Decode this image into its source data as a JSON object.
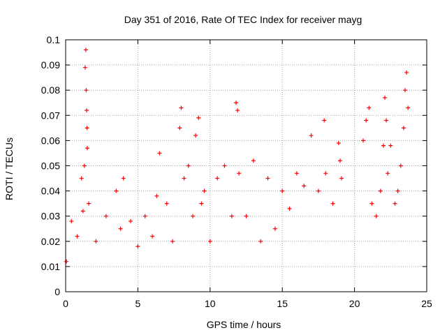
{
  "chart_data": {
    "type": "scatter",
    "title": "Day 351 of 2016, Rate Of TEC Index for receiver mayg",
    "xlabel": "GPS time / hours",
    "ylabel": "ROTI / TECUs",
    "xlim": [
      0,
      25
    ],
    "ylim": [
      0,
      0.1
    ],
    "xticks": [
      "0",
      "5",
      "10",
      "15",
      "20",
      "25"
    ],
    "yticks": [
      "0",
      "0.01",
      "0.02",
      "0.03",
      "0.04",
      "0.05",
      "0.06",
      "0.07",
      "0.08",
      "0.09",
      "0.1"
    ],
    "grid": true,
    "marker": "+",
    "colors": {
      "points": "#ff0000",
      "grid": "#a0a0a0",
      "axis": "#000000"
    },
    "x": [
      0.05,
      0.4,
      0.8,
      1.1,
      1.2,
      1.3,
      1.35,
      1.4,
      1.42,
      1.45,
      1.48,
      1.5,
      1.6,
      2.1,
      2.8,
      3.5,
      3.8,
      4.0,
      4.5,
      5.0,
      5.5,
      6.0,
      6.3,
      6.5,
      7.0,
      7.4,
      7.9,
      8.0,
      8.2,
      8.5,
      8.8,
      9.0,
      9.2,
      9.4,
      9.6,
      10.0,
      10.5,
      11.0,
      11.5,
      11.8,
      11.9,
      12.0,
      12.5,
      13.0,
      13.5,
      14.0,
      14.5,
      15.0,
      15.5,
      16.0,
      16.5,
      17.0,
      17.5,
      17.9,
      18.0,
      18.5,
      18.9,
      19.0,
      19.1,
      20.6,
      20.8,
      21.0,
      21.2,
      21.5,
      21.8,
      22.0,
      22.1,
      22.2,
      22.3,
      22.5,
      22.8,
      23.0,
      23.2,
      23.4,
      23.5,
      23.6,
      23.7
    ],
    "y": [
      0.012,
      0.028,
      0.022,
      0.045,
      0.032,
      0.05,
      0.089,
      0.096,
      0.08,
      0.072,
      0.065,
      0.057,
      0.035,
      0.02,
      0.03,
      0.04,
      0.025,
      0.045,
      0.028,
      0.018,
      0.03,
      0.022,
      0.038,
      0.055,
      0.035,
      0.02,
      0.065,
      0.073,
      0.045,
      0.05,
      0.03,
      0.062,
      0.069,
      0.035,
      0.04,
      0.02,
      0.045,
      0.05,
      0.03,
      0.075,
      0.072,
      0.047,
      0.03,
      0.052,
      0.02,
      0.045,
      0.025,
      0.04,
      0.033,
      0.047,
      0.042,
      0.062,
      0.04,
      0.068,
      0.047,
      0.035,
      0.059,
      0.052,
      0.045,
      0.06,
      0.068,
      0.073,
      0.035,
      0.03,
      0.04,
      0.058,
      0.077,
      0.068,
      0.047,
      0.058,
      0.035,
      0.04,
      0.05,
      0.065,
      0.08,
      0.087,
      0.073
    ]
  }
}
